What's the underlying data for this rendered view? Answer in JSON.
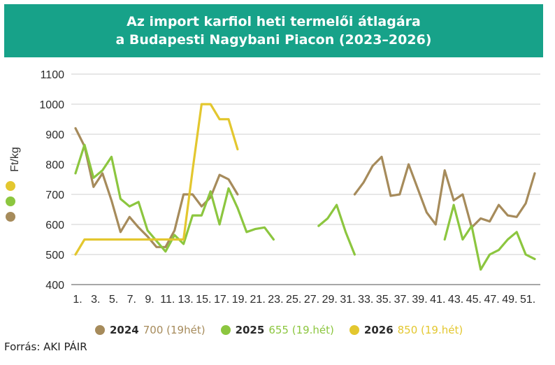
{
  "title": {
    "line1": "Az import karfiol heti termelői átlagára",
    "line2": "a Budapesti Nagybani Piacon (2023–2026)"
  },
  "source": "Forrás: AKI PÁIR",
  "chart_data": {
    "type": "line",
    "ylabel": "Ft/kg",
    "ylim": [
      400,
      1100
    ],
    "yticks": [
      400,
      500,
      600,
      700,
      800,
      900,
      1000,
      1100
    ],
    "xlim": [
      1,
      52
    ],
    "xticks": [
      1,
      3,
      5,
      7,
      9,
      11,
      13,
      15,
      17,
      19,
      21,
      23,
      25,
      27,
      29,
      31,
      33,
      35,
      37,
      39,
      41,
      43,
      45,
      47,
      49,
      51
    ],
    "xtick_labels": [
      "1.",
      "3.",
      "5.",
      "7.",
      "9.",
      "11.",
      "13.",
      "15.",
      "17.",
      "19.",
      "21.",
      "23.",
      "25.",
      "27.",
      "29.",
      "31.",
      "33.",
      "35.",
      "37.",
      "39.",
      "41.",
      "43.",
      "45.",
      "47.",
      "49.",
      "51."
    ],
    "grid": "horizontal",
    "legend_position": "bottom",
    "series": [
      {
        "name": "2024",
        "legend_note": "700 (19hét)",
        "color": "#a68b5b",
        "segments": [
          [
            [
              1,
              920
            ],
            [
              2,
              860
            ],
            [
              3,
              725
            ],
            [
              4,
              770
            ],
            [
              5,
              680
            ],
            [
              6,
              575
            ],
            [
              7,
              625
            ],
            [
              8,
              590
            ],
            [
              9,
              560
            ],
            [
              10,
              525
            ],
            [
              11,
              525
            ],
            [
              12,
              580
            ],
            [
              13,
              700
            ],
            [
              14,
              700
            ],
            [
              15,
              660
            ],
            [
              16,
              690
            ],
            [
              17,
              765
            ],
            [
              18,
              750
            ],
            [
              19,
              700
            ]
          ],
          [
            [
              32,
              700
            ],
            [
              33,
              740
            ],
            [
              34,
              795
            ],
            [
              35,
              825
            ],
            [
              36,
              695
            ],
            [
              37,
              700
            ],
            [
              38,
              800
            ],
            [
              39,
              720
            ],
            [
              40,
              640
            ],
            [
              41,
              600
            ],
            [
              42,
              780
            ],
            [
              43,
              680
            ],
            [
              44,
              700
            ],
            [
              45,
              590
            ],
            [
              46,
              620
            ],
            [
              47,
              610
            ],
            [
              48,
              665
            ],
            [
              49,
              630
            ],
            [
              50,
              625
            ],
            [
              51,
              670
            ],
            [
              52,
              770
            ]
          ]
        ]
      },
      {
        "name": "2025",
        "legend_note": "655 (19.hét)",
        "color": "#8cc63f",
        "segments": [
          [
            [
              1,
              770
            ],
            [
              2,
              865
            ],
            [
              3,
              755
            ],
            [
              4,
              780
            ],
            [
              5,
              825
            ],
            [
              6,
              685
            ],
            [
              7,
              660
            ],
            [
              8,
              675
            ],
            [
              9,
              580
            ],
            [
              10,
              545
            ],
            [
              11,
              510
            ],
            [
              12,
              565
            ],
            [
              13,
              535
            ],
            [
              14,
              630
            ],
            [
              15,
              630
            ],
            [
              16,
              710
            ],
            [
              17,
              600
            ],
            [
              18,
              720
            ],
            [
              19,
              655
            ],
            [
              20,
              575
            ],
            [
              21,
              585
            ],
            [
              22,
              590
            ],
            [
              23,
              550
            ]
          ],
          [
            [
              28,
              595
            ],
            [
              29,
              620
            ],
            [
              30,
              665
            ],
            [
              31,
              575
            ],
            [
              32,
              500
            ]
          ],
          [
            [
              42,
              550
            ],
            [
              43,
              665
            ],
            [
              44,
              550
            ],
            [
              45,
              595
            ],
            [
              46,
              450
            ],
            [
              47,
              500
            ],
            [
              48,
              515
            ],
            [
              49,
              550
            ],
            [
              50,
              575
            ],
            [
              51,
              500
            ],
            [
              52,
              485
            ]
          ]
        ]
      },
      {
        "name": "2026",
        "legend_note": "850 (19.hét)",
        "color": "#e3c72f",
        "segments": [
          [
            [
              1,
              500
            ],
            [
              2,
              550
            ],
            [
              3,
              550
            ],
            [
              4,
              550
            ],
            [
              5,
              550
            ],
            [
              6,
              550
            ],
            [
              7,
              550
            ],
            [
              8,
              550
            ],
            [
              9,
              550
            ],
            [
              10,
              550
            ],
            [
              11,
              550
            ],
            [
              12,
              550
            ],
            [
              13,
              550
            ],
            [
              14,
              780
            ],
            [
              15,
              1000
            ],
            [
              16,
              1000
            ],
            [
              17,
              950
            ],
            [
              18,
              950
            ],
            [
              19,
              850
            ]
          ]
        ]
      }
    ]
  }
}
